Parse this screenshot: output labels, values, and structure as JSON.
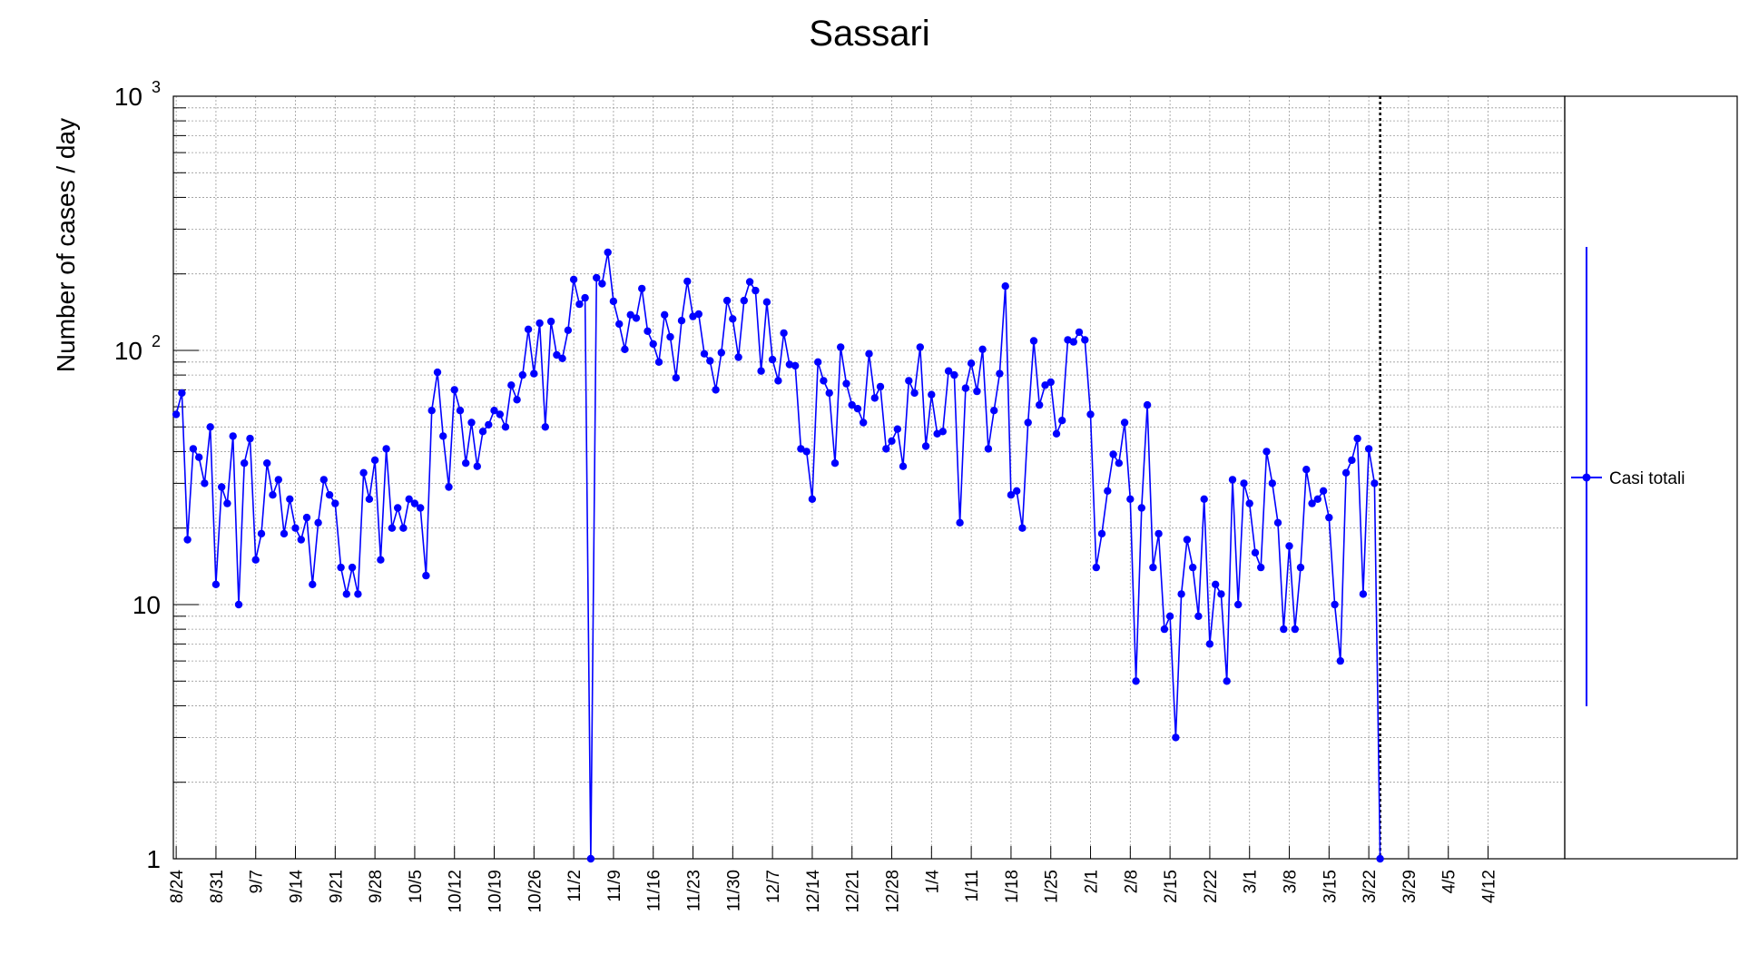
{
  "chart_data": {
    "type": "line",
    "title": "Sassari",
    "ylabel": "Number of cases / day",
    "xlabel": "",
    "yscale": "log",
    "ylim": [
      1,
      1000
    ],
    "ytick_labels": [
      "1",
      "10",
      "10",
      "10"
    ],
    "ytick_exponents": [
      "",
      "",
      "2",
      "3"
    ],
    "grid": true,
    "legend_position": "right",
    "x_tick_labels": [
      "8/24",
      "8/31",
      "9/7",
      "9/14",
      "9/21",
      "9/28",
      "10/5",
      "10/12",
      "10/19",
      "10/26",
      "11/2",
      "11/9",
      "11/16",
      "11/23",
      "11/30",
      "12/7",
      "12/14",
      "12/21",
      "12/28",
      "1/4",
      "1/11",
      "1/18",
      "1/25",
      "2/1",
      "2/8",
      "2/15",
      "2/22",
      "3/1",
      "3/8",
      "3/15",
      "3/22",
      "3/29",
      "4/5",
      "4/12"
    ],
    "x_axis_days": 245,
    "marker_day": 212,
    "series": [
      {
        "name": "Casi totali",
        "color": "#0000ff",
        "start_date": "8/24",
        "values": [
          56,
          68,
          18,
          41,
          38,
          30,
          50,
          12,
          29,
          25,
          46,
          10,
          36,
          45,
          15,
          19,
          36,
          27,
          31,
          19,
          26,
          20,
          18,
          22,
          12,
          21,
          31,
          27,
          25,
          14,
          11,
          14,
          11,
          33,
          26,
          37,
          15,
          41,
          20,
          24,
          20,
          26,
          25,
          24,
          13,
          58,
          82,
          46,
          29,
          70,
          58,
          36,
          52,
          35,
          48,
          51,
          58,
          56,
          50,
          73,
          64,
          80,
          121,
          81,
          128,
          50,
          130,
          96,
          93,
          120,
          190,
          152,
          161,
          1,
          193,
          183,
          243,
          156,
          127,
          101,
          138,
          134,
          175,
          119,
          106,
          90,
          138,
          113,
          78,
          131,
          187,
          136,
          139,
          97,
          91,
          70,
          98,
          157,
          133,
          94,
          157,
          186,
          172,
          83,
          155,
          92,
          76,
          117,
          88,
          87,
          41,
          40,
          26,
          90,
          76,
          68,
          36,
          103,
          74,
          61,
          59,
          52,
          97,
          65,
          72,
          41,
          44,
          49,
          35,
          76,
          68,
          103,
          42,
          67,
          47,
          48,
          83,
          80,
          21,
          71,
          89,
          69,
          101,
          41,
          58,
          81,
          179,
          27,
          28,
          20,
          52,
          109,
          61,
          73,
          75,
          47,
          53,
          110,
          108,
          118,
          110,
          56,
          14,
          19,
          28,
          39,
          36,
          52,
          26,
          5,
          24,
          61,
          14,
          19,
          8,
          9,
          3,
          11,
          18,
          14,
          9,
          26,
          7,
          12,
          11,
          5,
          31,
          10,
          30,
          25,
          16,
          14,
          40,
          30,
          21,
          8,
          17,
          8,
          14,
          34,
          25,
          26,
          28,
          22,
          10,
          6,
          33,
          37,
          45,
          11,
          41,
          30,
          1
        ]
      }
    ]
  }
}
